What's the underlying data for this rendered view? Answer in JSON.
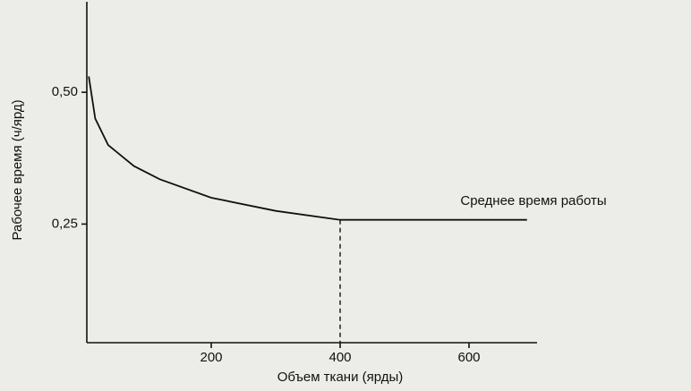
{
  "chart_data": {
    "type": "line",
    "x_label": "Объем ткани (ярды)",
    "y_label": "Рабочее время (ч/ярд)",
    "annotation": "Среднее время работы",
    "x": [
      10,
      20,
      40,
      80,
      120,
      200,
      300,
      400,
      500,
      600,
      690
    ],
    "series": [
      {
        "color": "#111111",
        "values": [
          0.53,
          0.45,
          0.4,
          0.36,
          0.335,
          0.3,
          0.275,
          0.258,
          0.258,
          0.258,
          0.258
        ]
      }
    ],
    "vline_x": 400,
    "xlim": [
      0,
      700
    ],
    "ylim": [
      0.025,
      0.675
    ],
    "xticks": [
      200,
      400,
      600
    ],
    "yticks": [
      {
        "value": 0.25,
        "label": "0,25"
      },
      {
        "value": 0.5,
        "label": "0,50"
      }
    ],
    "grid": false
  }
}
